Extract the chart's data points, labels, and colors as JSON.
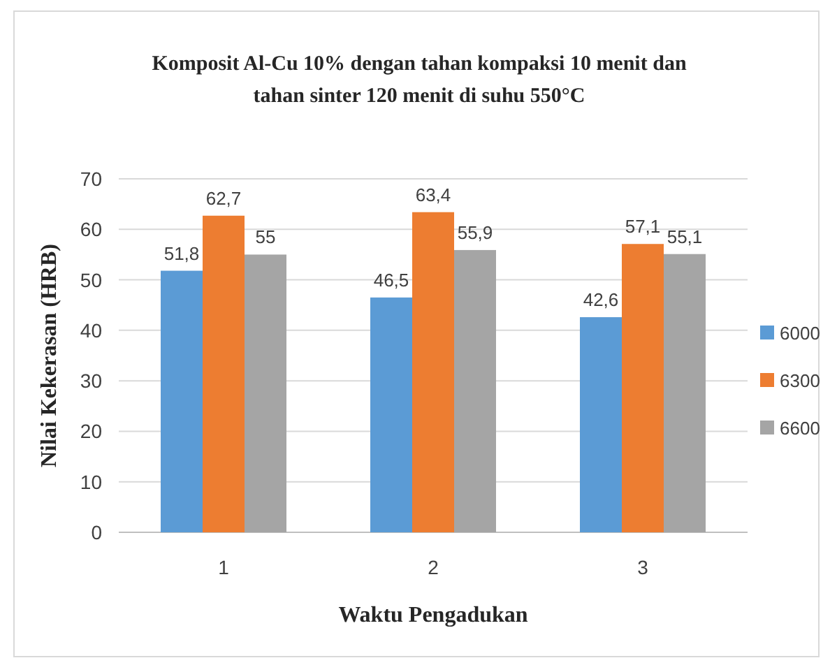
{
  "chart_data": {
    "type": "bar",
    "title": "Komposit Al-Cu 10% dengan tahan kompaksi 10 menit dan tahan sinter 120 menit di suhu 550°C",
    "xlabel": "Waktu Pengadukan",
    "ylabel": "Nilai Kekerasan (HRB)",
    "categories": [
      "1",
      "2",
      "3"
    ],
    "series": [
      {
        "name": "6000",
        "color": "#5b9bd5",
        "values": [
          51.8,
          46.5,
          42.6
        ],
        "value_labels": [
          "51,8",
          "46,5",
          "42,6"
        ]
      },
      {
        "name": "6300",
        "color": "#ed7d31",
        "values": [
          62.7,
          63.4,
          57.1
        ],
        "value_labels": [
          "62,7",
          "63,4",
          "57,1"
        ]
      },
      {
        "name": "6600",
        "color": "#a5a5a5",
        "values": [
          55,
          55.9,
          55.1
        ],
        "value_labels": [
          "55",
          "55,9",
          "55,1"
        ]
      }
    ],
    "ylim": [
      0,
      70
    ],
    "yticks": [
      0,
      10,
      20,
      30,
      40,
      50,
      60,
      70
    ],
    "grid": "y",
    "legend": "right"
  }
}
